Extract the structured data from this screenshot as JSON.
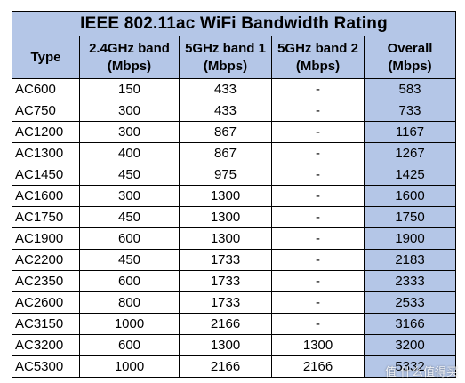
{
  "title": "IEEE 802.11ac WiFi Bandwidth Rating",
  "headers": {
    "type": "Type",
    "band24": [
      "2.4GHz band",
      "(Mbps)"
    ],
    "band5_1": [
      "5GHz band 1",
      "(Mbps)"
    ],
    "band5_2": [
      "5GHz band 2",
      "(Mbps)"
    ],
    "overall": [
      "Overall",
      "(Mbps)"
    ]
  },
  "rows": [
    {
      "type": "AC600",
      "b24": "150",
      "b51": "433",
      "b52": "-",
      "overall": "583"
    },
    {
      "type": "AC750",
      "b24": "300",
      "b51": "433",
      "b52": "-",
      "overall": "733"
    },
    {
      "type": "AC1200",
      "b24": "300",
      "b51": "867",
      "b52": "-",
      "overall": "1167"
    },
    {
      "type": "AC1300",
      "b24": "400",
      "b51": "867",
      "b52": "-",
      "overall": "1267"
    },
    {
      "type": "AC1450",
      "b24": "450",
      "b51": "975",
      "b52": "-",
      "overall": "1425"
    },
    {
      "type": "AC1600",
      "b24": "300",
      "b51": "1300",
      "b52": "-",
      "overall": "1600"
    },
    {
      "type": "AC1750",
      "b24": "450",
      "b51": "1300",
      "b52": "-",
      "overall": "1750"
    },
    {
      "type": "AC1900",
      "b24": "600",
      "b51": "1300",
      "b52": "-",
      "overall": "1900"
    },
    {
      "type": "AC2200",
      "b24": "450",
      "b51": "1733",
      "b52": "-",
      "overall": "2183"
    },
    {
      "type": "AC2350",
      "b24": "600",
      "b51": "1733",
      "b52": "-",
      "overall": "2333"
    },
    {
      "type": "AC2600",
      "b24": "800",
      "b51": "1733",
      "b52": "-",
      "overall": "2533"
    },
    {
      "type": "AC3150",
      "b24": "1000",
      "b51": "2166",
      "b52": "-",
      "overall": "3166"
    },
    {
      "type": "AC3200",
      "b24": "600",
      "b51": "1300",
      "b52": "1300",
      "overall": "3200"
    },
    {
      "type": "AC5300",
      "b24": "1000",
      "b51": "2166",
      "b52": "2166",
      "overall": "5332"
    }
  ],
  "watermark": "值 什么值得买",
  "colors": {
    "header_fill": "#b4c6e7",
    "border": "#000000"
  }
}
